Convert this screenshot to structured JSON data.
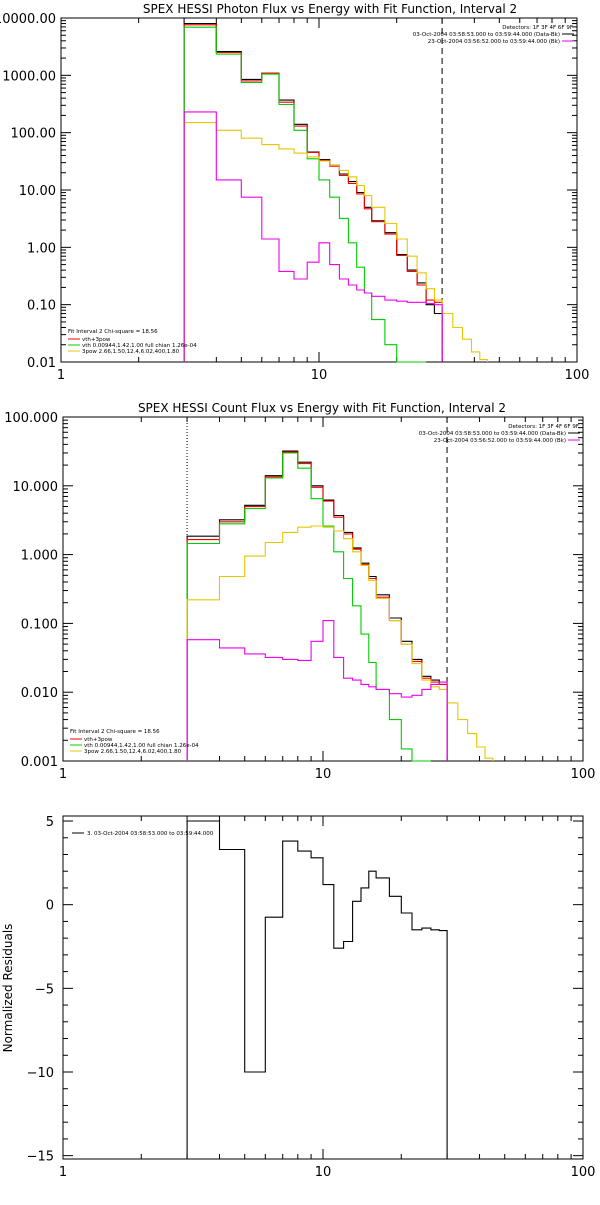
{
  "chart_data": [
    {
      "id": "photon",
      "type": "line",
      "step": true,
      "title": "SPEX HESSI Photon Flux vs Energy with Fit Function, Interval 2",
      "xlabel": "",
      "ylabel": "",
      "xscale": "log",
      "yscale": "log",
      "xlim": [
        1,
        100
      ],
      "ylim": [
        0.01,
        10000
      ],
      "xticks": [
        {
          "v": 1,
          "label": "1"
        },
        {
          "v": 10,
          "label": "10"
        },
        {
          "v": 100,
          "label": "100"
        }
      ],
      "yticks": [
        {
          "v": 10000,
          "label": "10000.00"
        },
        {
          "v": 1000,
          "label": "1000.00"
        },
        {
          "v": 100,
          "label": "100.00"
        },
        {
          "v": 10,
          "label": "10.00"
        },
        {
          "v": 1,
          "label": "1.00"
        },
        {
          "v": 0.1,
          "label": "0.10"
        },
        {
          "v": 0.01,
          "label": "0.01"
        }
      ],
      "vlines": [
        {
          "x": 3,
          "style": "dotted"
        },
        {
          "x": 30,
          "style": "dashed"
        }
      ],
      "legend_topright": [
        "Detectors: 1F 3F 4F 6F 9F",
        "03-Oct-2004 03:58:53.000 to 03:59:44.000 (Data-Bk)",
        "23-Oct-2004 03:56:52.000 to 03:59:44.000 (Bk)"
      ],
      "legend_bottomleft": [
        "Fit Interval 2   Chi-square = 18.56",
        "vth+3pow",
        "vth 0.00944,1.42,1.00  full chian 1.26e-04",
        "3pow 2.66,1.50,12.4,6.02,400,1.80"
      ],
      "series": [
        {
          "role": "data",
          "color": "#000000",
          "edges": [
            3,
            4,
            5,
            6,
            7,
            8,
            9,
            10,
            11,
            12,
            13,
            14,
            15,
            16,
            18,
            20,
            22,
            24,
            26,
            28,
            30
          ],
          "values": [
            8000,
            2600,
            850,
            1100,
            370,
            140,
            46,
            34,
            27,
            19,
            14,
            9,
            5,
            2.9,
            1.8,
            0.75,
            0.4,
            0.24,
            0.1,
            0.07
          ]
        },
        {
          "role": "total",
          "color": "#ff0000",
          "edges": [
            3,
            4,
            5,
            6,
            7,
            8,
            9,
            10,
            11,
            12,
            13,
            14,
            15,
            16,
            18,
            20,
            22,
            24,
            26,
            28,
            30
          ],
          "values": [
            7600,
            2500,
            800,
            1100,
            340,
            130,
            45,
            33,
            26,
            18,
            13,
            8.5,
            4.7,
            2.8,
            1.7,
            0.72,
            0.38,
            0.22,
            0.12,
            0.11
          ]
        },
        {
          "role": "thermal",
          "color": "#00cc00",
          "edges": [
            3,
            4,
            5,
            6,
            7,
            8,
            9,
            10,
            11,
            12,
            13,
            14,
            15,
            16,
            18,
            20,
            22,
            24,
            26
          ],
          "values": [
            6900,
            2350,
            750,
            1050,
            310,
            110,
            35,
            15,
            7.5,
            3.2,
            1.2,
            0.45,
            0.16,
            0.055,
            0.02,
            0.008,
            0.008,
            0.008
          ]
        },
        {
          "role": "power",
          "color": "#e6c800",
          "edges": [
            3,
            4,
            5,
            6,
            7,
            8,
            9,
            10,
            11,
            12,
            13,
            14,
            15,
            16,
            18,
            20,
            22,
            24,
            26,
            28,
            30,
            33,
            36,
            39,
            42,
            45
          ],
          "values": [
            150,
            110,
            80,
            62,
            52,
            44,
            38,
            32,
            27,
            22,
            17,
            12,
            8,
            5,
            2.6,
            1.4,
            0.7,
            0.36,
            0.19,
            0.12,
            0.07,
            0.04,
            0.025,
            0.015,
            0.011
          ]
        },
        {
          "role": "background",
          "color": "#ee00ee",
          "edges": [
            3,
            4,
            5,
            6,
            7,
            8,
            9,
            10,
            11,
            12,
            13,
            14,
            15,
            16,
            18,
            20,
            22,
            24,
            26,
            28,
            30
          ],
          "values": [
            230,
            15,
            7.5,
            1.4,
            0.38,
            0.28,
            0.55,
            1.2,
            0.5,
            0.28,
            0.22,
            0.18,
            0.16,
            0.14,
            0.12,
            0.115,
            0.11,
            0.11,
            0.105,
            0.1
          ]
        }
      ]
    },
    {
      "id": "count",
      "type": "line",
      "step": true,
      "title": "SPEX HESSI Count Flux vs Energy with Fit Function, Interval 2",
      "xlabel": "",
      "ylabel": "",
      "xscale": "log",
      "yscale": "log",
      "xlim": [
        1,
        100
      ],
      "ylim": [
        0.001,
        100
      ],
      "xticks": [
        {
          "v": 1,
          "label": "1"
        },
        {
          "v": 10,
          "label": "10"
        },
        {
          "v": 100,
          "label": "100"
        }
      ],
      "yticks": [
        {
          "v": 100,
          "label": "100.000"
        },
        {
          "v": 10,
          "label": "10.000"
        },
        {
          "v": 1,
          "label": "1.000"
        },
        {
          "v": 0.1,
          "label": "0.100"
        },
        {
          "v": 0.01,
          "label": "0.010"
        },
        {
          "v": 0.001,
          "label": "0.001"
        }
      ],
      "vlines": [
        {
          "x": 3,
          "style": "dotted"
        },
        {
          "x": 30,
          "style": "dashed"
        }
      ],
      "legend_topright": [
        "Detectors: 1F 3F 4F 6F 9F",
        "03-Oct-2004 03:58:53.000 to 03:59:44.000 (Data-Bk)",
        "23-Oct-2004 03:56:52.000 to 03:59:44.000 (Bk)"
      ],
      "legend_bottomleft": [
        "Fit Interval 2   Chi-square = 18.56",
        "vth+3pow",
        "vth 0.00944,1.42,1.00  full chian 1.26e-04",
        "3pow 2.66,1.50,12.4,6.02,400,1.80"
      ],
      "series": [
        {
          "role": "data",
          "color": "#000000",
          "edges": [
            3,
            4,
            5,
            6,
            7,
            8,
            9,
            10,
            11,
            12,
            13,
            14,
            15,
            16,
            18,
            20,
            22,
            24,
            26,
            28,
            30
          ],
          "values": [
            1.85,
            3.2,
            5.2,
            14,
            32,
            22,
            10,
            6.2,
            3.7,
            2.1,
            1.25,
            0.75,
            0.48,
            0.26,
            0.12,
            0.055,
            0.03,
            0.017,
            0.015,
            0.013
          ]
        },
        {
          "role": "total",
          "color": "#ff0000",
          "edges": [
            3,
            4,
            5,
            6,
            7,
            8,
            9,
            10,
            11,
            12,
            13,
            14,
            15,
            16,
            18,
            20,
            22,
            24,
            26,
            28,
            30
          ],
          "values": [
            1.65,
            3.0,
            5.0,
            13.5,
            31,
            21,
            9.5,
            6.0,
            3.5,
            2.0,
            1.2,
            0.72,
            0.45,
            0.24,
            0.11,
            0.05,
            0.028,
            0.016,
            0.014,
            0.013
          ]
        },
        {
          "role": "thermal",
          "color": "#00cc00",
          "edges": [
            3,
            4,
            5,
            6,
            7,
            8,
            9,
            10,
            11,
            12,
            13,
            14,
            15,
            16,
            18,
            20,
            22,
            24,
            26
          ],
          "values": [
            1.45,
            2.8,
            4.7,
            13,
            30,
            18,
            6.5,
            2.6,
            1.1,
            0.45,
            0.18,
            0.07,
            0.027,
            0.011,
            0.004,
            0.0015,
            0.001,
            0.001
          ]
        },
        {
          "role": "power",
          "color": "#e6c800",
          "edges": [
            3,
            4,
            5,
            6,
            7,
            8,
            9,
            10,
            11,
            12,
            13,
            14,
            15,
            16,
            18,
            20,
            22,
            24,
            26,
            28,
            30,
            33,
            36,
            39,
            42,
            45
          ],
          "values": [
            0.22,
            0.48,
            0.95,
            1.5,
            2.1,
            2.5,
            2.6,
            2.5,
            2.2,
            1.7,
            1.1,
            0.7,
            0.42,
            0.23,
            0.11,
            0.05,
            0.026,
            0.015,
            0.012,
            0.011,
            0.007,
            0.004,
            0.0025,
            0.0016,
            0.0011
          ]
        },
        {
          "role": "background",
          "color": "#ee00ee",
          "edges": [
            3,
            4,
            5,
            6,
            7,
            8,
            9,
            10,
            11,
            12,
            13,
            14,
            15,
            16,
            18,
            20,
            22,
            24,
            26,
            28,
            30
          ],
          "values": [
            0.058,
            0.044,
            0.036,
            0.032,
            0.03,
            0.029,
            0.055,
            0.11,
            0.032,
            0.016,
            0.015,
            0.013,
            0.012,
            0.011,
            0.0095,
            0.0085,
            0.009,
            0.011,
            0.013,
            0.014
          ]
        }
      ]
    },
    {
      "id": "residuals",
      "type": "line",
      "step": true,
      "title": "",
      "xlabel": "",
      "ylabel": "Normalized Residuals",
      "xscale": "log",
      "yscale": "linear",
      "xlim": [
        1,
        100
      ],
      "ylim": [
        -15.2,
        5.3
      ],
      "xticks": [
        {
          "v": 1,
          "label": "1"
        },
        {
          "v": 10,
          "label": "10"
        },
        {
          "v": 100,
          "label": "100"
        }
      ],
      "yticks": [
        {
          "v": 5,
          "label": "5"
        },
        {
          "v": 0,
          "label": "0"
        },
        {
          "v": -5,
          "label": "−5"
        },
        {
          "v": -10,
          "label": "−10"
        },
        {
          "v": -15,
          "label": "−15"
        }
      ],
      "legend_topleft": [
        "3. 03-Oct-2004 03:58:53.000 to 03:59:44.000"
      ],
      "series": [
        {
          "role": "residual",
          "color": "#000000",
          "edges": [
            3,
            4,
            5,
            6,
            7,
            8,
            9,
            10,
            11,
            12,
            13,
            14,
            15,
            16,
            18,
            20,
            22,
            24,
            26,
            28,
            30
          ],
          "values": [
            5.0,
            3.3,
            -10.0,
            -0.75,
            3.8,
            3.2,
            2.8,
            1.2,
            -2.6,
            -2.2,
            0.2,
            1.0,
            2.0,
            1.6,
            0.5,
            -0.5,
            -1.5,
            -1.4,
            -1.5,
            -1.55
          ]
        }
      ]
    }
  ]
}
